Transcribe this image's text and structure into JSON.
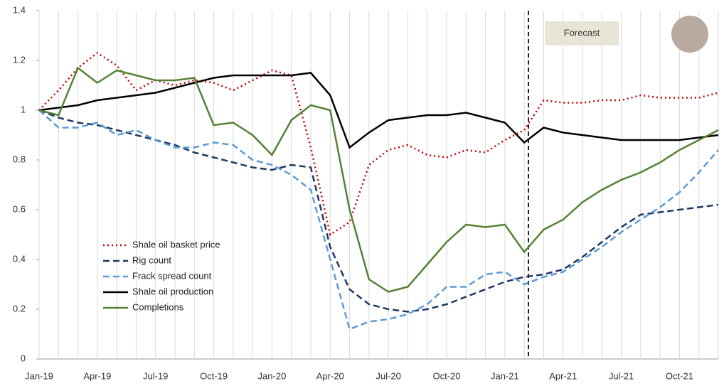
{
  "chart_data": {
    "type": "line",
    "categories": [
      "Jan-19",
      null,
      null,
      "Apr-19",
      null,
      null,
      "Jul-19",
      null,
      null,
      "Oct-19",
      null,
      null,
      "Jan-20",
      null,
      null,
      "Apr-20",
      null,
      null,
      "Jul-20",
      null,
      null,
      "Oct-20",
      null,
      null,
      "Jan-21",
      null,
      null,
      "Apr-21",
      null,
      null,
      "Jul-21",
      null,
      null,
      "Oct-21",
      null,
      null
    ],
    "series": [
      {
        "name": "Shale oil basket price",
        "color": "#c00000",
        "style": "dotted",
        "values": [
          1.0,
          1.08,
          1.17,
          1.23,
          1.18,
          1.08,
          1.12,
          1.1,
          1.12,
          1.11,
          1.08,
          1.12,
          1.16,
          1.14,
          0.85,
          0.5,
          0.55,
          0.78,
          0.84,
          0.86,
          0.82,
          0.81,
          0.84,
          0.83,
          0.88,
          0.92,
          1.04,
          1.03,
          1.03,
          1.04,
          1.04,
          1.06,
          1.05,
          1.05,
          1.05,
          1.07
        ]
      },
      {
        "name": "Rig count",
        "color": "#1f3864",
        "style": "dashed",
        "values": [
          1.0,
          0.97,
          0.95,
          0.94,
          0.92,
          0.9,
          0.88,
          0.86,
          0.83,
          0.81,
          0.79,
          0.77,
          0.76,
          0.78,
          0.77,
          0.45,
          0.28,
          0.22,
          0.2,
          0.19,
          0.2,
          0.22,
          0.25,
          0.28,
          0.31,
          0.33,
          0.34,
          0.36,
          0.41,
          0.47,
          0.53,
          0.58,
          0.59,
          0.6,
          0.61,
          0.62
        ]
      },
      {
        "name": "Frack spread count",
        "color": "#5b9bd5",
        "style": "dashed",
        "values": [
          1.0,
          0.93,
          0.93,
          0.95,
          0.9,
          0.92,
          0.88,
          0.85,
          0.85,
          0.87,
          0.86,
          0.8,
          0.78,
          0.74,
          0.68,
          0.4,
          0.12,
          0.15,
          0.16,
          0.18,
          0.22,
          0.29,
          0.29,
          0.34,
          0.35,
          0.3,
          0.33,
          0.35,
          0.4,
          0.45,
          0.51,
          0.56,
          0.61,
          0.67,
          0.75,
          0.84
        ]
      },
      {
        "name": "Shale oil production",
        "color": "#000000",
        "style": "solid",
        "values": [
          1.0,
          1.01,
          1.02,
          1.04,
          1.05,
          1.06,
          1.07,
          1.09,
          1.11,
          1.13,
          1.14,
          1.14,
          1.14,
          1.14,
          1.15,
          1.06,
          0.85,
          0.91,
          0.96,
          0.97,
          0.98,
          0.98,
          0.99,
          0.97,
          0.95,
          0.87,
          0.93,
          0.91,
          0.9,
          0.89,
          0.88,
          0.88,
          0.88,
          0.88,
          0.89,
          0.9
        ]
      },
      {
        "name": "Completions",
        "color": "#548235",
        "style": "solid",
        "values": [
          1.0,
          0.98,
          1.17,
          1.11,
          1.16,
          1.14,
          1.12,
          1.12,
          1.13,
          0.94,
          0.95,
          0.9,
          0.82,
          0.96,
          1.02,
          1.0,
          0.6,
          0.32,
          0.27,
          0.29,
          0.38,
          0.47,
          0.54,
          0.53,
          0.54,
          0.43,
          0.52,
          0.56,
          0.63,
          0.68,
          0.72,
          0.75,
          0.79,
          0.84,
          0.88,
          0.92
        ]
      }
    ],
    "annotation": "Forecast",
    "ylim": [
      0,
      1.4
    ],
    "yticks": [
      0,
      0.2,
      0.4,
      0.6,
      0.8,
      1,
      1.2,
      1.4
    ],
    "grid": "x"
  }
}
